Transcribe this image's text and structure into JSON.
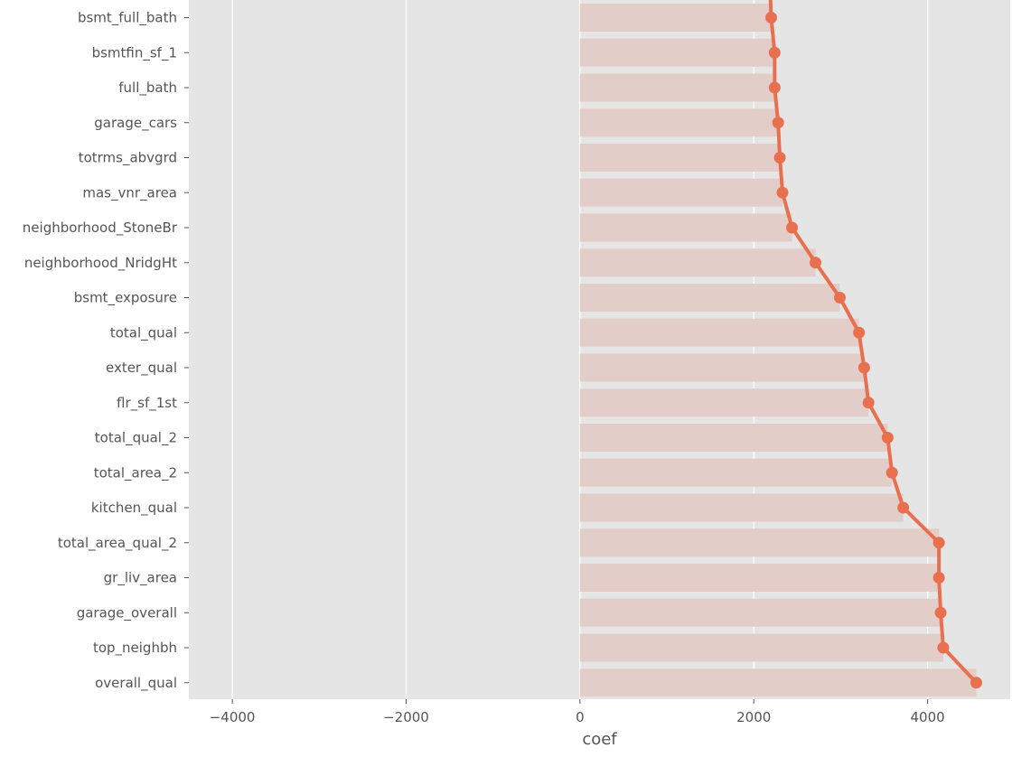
{
  "chart_data": {
    "type": "bar",
    "title": "",
    "xlabel": "coef",
    "ylabel": "",
    "xlim": [
      -4500,
      4950
    ],
    "xticks": [
      -4000,
      -2000,
      0,
      2000,
      4000
    ],
    "xtick_labels": [
      "−4000",
      "−2000",
      "0",
      "2000",
      "4000"
    ],
    "grid": true,
    "style": "ggplot",
    "categories": [
      "bsmt_full_bath",
      "bsmtfin_sf_1",
      "full_bath",
      "garage_cars",
      "totrms_abvgrd",
      "mas_vnr_area",
      "neighborhood_StoneBr",
      "neighborhood_NridgHt",
      "bsmt_exposure",
      "total_qual",
      "exter_qual",
      "flr_sf_1st",
      "total_qual_2",
      "total_area_2",
      "kitchen_qual",
      "total_area_qual_2",
      "gr_liv_area",
      "garage_overall",
      "top_neighbh",
      "overall_qual"
    ],
    "values": [
      2200,
      2240,
      2240,
      2280,
      2300,
      2330,
      2440,
      2710,
      2990,
      3210,
      3270,
      3320,
      3540,
      3590,
      3720,
      4130,
      4130,
      4150,
      4180,
      4560
    ],
    "series": [
      {
        "kind": "bar",
        "color": "#e3cdc8"
      },
      {
        "kind": "line-with-markers",
        "color": "#e8704f"
      }
    ]
  }
}
